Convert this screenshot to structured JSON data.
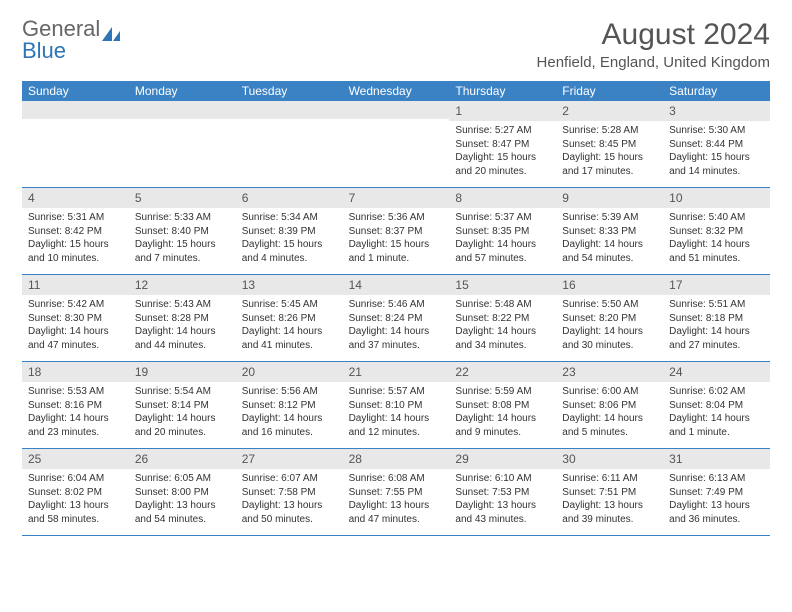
{
  "brand": {
    "word1": "General",
    "word2": "Blue"
  },
  "title": "August 2024",
  "location": "Henfield, England, United Kingdom",
  "colors": {
    "header_bg": "#3b82c4",
    "header_text": "#ffffff",
    "daynum_bg": "#e8e8e8",
    "border": "#3b82c4",
    "text": "#333333"
  },
  "days_of_week": [
    "Sunday",
    "Monday",
    "Tuesday",
    "Wednesday",
    "Thursday",
    "Friday",
    "Saturday"
  ],
  "weeks": [
    [
      {
        "n": "",
        "sr": "",
        "ss": "",
        "dl1": "",
        "dl2": ""
      },
      {
        "n": "",
        "sr": "",
        "ss": "",
        "dl1": "",
        "dl2": ""
      },
      {
        "n": "",
        "sr": "",
        "ss": "",
        "dl1": "",
        "dl2": ""
      },
      {
        "n": "",
        "sr": "",
        "ss": "",
        "dl1": "",
        "dl2": ""
      },
      {
        "n": "1",
        "sr": "Sunrise: 5:27 AM",
        "ss": "Sunset: 8:47 PM",
        "dl1": "Daylight: 15 hours",
        "dl2": "and 20 minutes."
      },
      {
        "n": "2",
        "sr": "Sunrise: 5:28 AM",
        "ss": "Sunset: 8:45 PM",
        "dl1": "Daylight: 15 hours",
        "dl2": "and 17 minutes."
      },
      {
        "n": "3",
        "sr": "Sunrise: 5:30 AM",
        "ss": "Sunset: 8:44 PM",
        "dl1": "Daylight: 15 hours",
        "dl2": "and 14 minutes."
      }
    ],
    [
      {
        "n": "4",
        "sr": "Sunrise: 5:31 AM",
        "ss": "Sunset: 8:42 PM",
        "dl1": "Daylight: 15 hours",
        "dl2": "and 10 minutes."
      },
      {
        "n": "5",
        "sr": "Sunrise: 5:33 AM",
        "ss": "Sunset: 8:40 PM",
        "dl1": "Daylight: 15 hours",
        "dl2": "and 7 minutes."
      },
      {
        "n": "6",
        "sr": "Sunrise: 5:34 AM",
        "ss": "Sunset: 8:39 PM",
        "dl1": "Daylight: 15 hours",
        "dl2": "and 4 minutes."
      },
      {
        "n": "7",
        "sr": "Sunrise: 5:36 AM",
        "ss": "Sunset: 8:37 PM",
        "dl1": "Daylight: 15 hours",
        "dl2": "and 1 minute."
      },
      {
        "n": "8",
        "sr": "Sunrise: 5:37 AM",
        "ss": "Sunset: 8:35 PM",
        "dl1": "Daylight: 14 hours",
        "dl2": "and 57 minutes."
      },
      {
        "n": "9",
        "sr": "Sunrise: 5:39 AM",
        "ss": "Sunset: 8:33 PM",
        "dl1": "Daylight: 14 hours",
        "dl2": "and 54 minutes."
      },
      {
        "n": "10",
        "sr": "Sunrise: 5:40 AM",
        "ss": "Sunset: 8:32 PM",
        "dl1": "Daylight: 14 hours",
        "dl2": "and 51 minutes."
      }
    ],
    [
      {
        "n": "11",
        "sr": "Sunrise: 5:42 AM",
        "ss": "Sunset: 8:30 PM",
        "dl1": "Daylight: 14 hours",
        "dl2": "and 47 minutes."
      },
      {
        "n": "12",
        "sr": "Sunrise: 5:43 AM",
        "ss": "Sunset: 8:28 PM",
        "dl1": "Daylight: 14 hours",
        "dl2": "and 44 minutes."
      },
      {
        "n": "13",
        "sr": "Sunrise: 5:45 AM",
        "ss": "Sunset: 8:26 PM",
        "dl1": "Daylight: 14 hours",
        "dl2": "and 41 minutes."
      },
      {
        "n": "14",
        "sr": "Sunrise: 5:46 AM",
        "ss": "Sunset: 8:24 PM",
        "dl1": "Daylight: 14 hours",
        "dl2": "and 37 minutes."
      },
      {
        "n": "15",
        "sr": "Sunrise: 5:48 AM",
        "ss": "Sunset: 8:22 PM",
        "dl1": "Daylight: 14 hours",
        "dl2": "and 34 minutes."
      },
      {
        "n": "16",
        "sr": "Sunrise: 5:50 AM",
        "ss": "Sunset: 8:20 PM",
        "dl1": "Daylight: 14 hours",
        "dl2": "and 30 minutes."
      },
      {
        "n": "17",
        "sr": "Sunrise: 5:51 AM",
        "ss": "Sunset: 8:18 PM",
        "dl1": "Daylight: 14 hours",
        "dl2": "and 27 minutes."
      }
    ],
    [
      {
        "n": "18",
        "sr": "Sunrise: 5:53 AM",
        "ss": "Sunset: 8:16 PM",
        "dl1": "Daylight: 14 hours",
        "dl2": "and 23 minutes."
      },
      {
        "n": "19",
        "sr": "Sunrise: 5:54 AM",
        "ss": "Sunset: 8:14 PM",
        "dl1": "Daylight: 14 hours",
        "dl2": "and 20 minutes."
      },
      {
        "n": "20",
        "sr": "Sunrise: 5:56 AM",
        "ss": "Sunset: 8:12 PM",
        "dl1": "Daylight: 14 hours",
        "dl2": "and 16 minutes."
      },
      {
        "n": "21",
        "sr": "Sunrise: 5:57 AM",
        "ss": "Sunset: 8:10 PM",
        "dl1": "Daylight: 14 hours",
        "dl2": "and 12 minutes."
      },
      {
        "n": "22",
        "sr": "Sunrise: 5:59 AM",
        "ss": "Sunset: 8:08 PM",
        "dl1": "Daylight: 14 hours",
        "dl2": "and 9 minutes."
      },
      {
        "n": "23",
        "sr": "Sunrise: 6:00 AM",
        "ss": "Sunset: 8:06 PM",
        "dl1": "Daylight: 14 hours",
        "dl2": "and 5 minutes."
      },
      {
        "n": "24",
        "sr": "Sunrise: 6:02 AM",
        "ss": "Sunset: 8:04 PM",
        "dl1": "Daylight: 14 hours",
        "dl2": "and 1 minute."
      }
    ],
    [
      {
        "n": "25",
        "sr": "Sunrise: 6:04 AM",
        "ss": "Sunset: 8:02 PM",
        "dl1": "Daylight: 13 hours",
        "dl2": "and 58 minutes."
      },
      {
        "n": "26",
        "sr": "Sunrise: 6:05 AM",
        "ss": "Sunset: 8:00 PM",
        "dl1": "Daylight: 13 hours",
        "dl2": "and 54 minutes."
      },
      {
        "n": "27",
        "sr": "Sunrise: 6:07 AM",
        "ss": "Sunset: 7:58 PM",
        "dl1": "Daylight: 13 hours",
        "dl2": "and 50 minutes."
      },
      {
        "n": "28",
        "sr": "Sunrise: 6:08 AM",
        "ss": "Sunset: 7:55 PM",
        "dl1": "Daylight: 13 hours",
        "dl2": "and 47 minutes."
      },
      {
        "n": "29",
        "sr": "Sunrise: 6:10 AM",
        "ss": "Sunset: 7:53 PM",
        "dl1": "Daylight: 13 hours",
        "dl2": "and 43 minutes."
      },
      {
        "n": "30",
        "sr": "Sunrise: 6:11 AM",
        "ss": "Sunset: 7:51 PM",
        "dl1": "Daylight: 13 hours",
        "dl2": "and 39 minutes."
      },
      {
        "n": "31",
        "sr": "Sunrise: 6:13 AM",
        "ss": "Sunset: 7:49 PM",
        "dl1": "Daylight: 13 hours",
        "dl2": "and 36 minutes."
      }
    ]
  ]
}
